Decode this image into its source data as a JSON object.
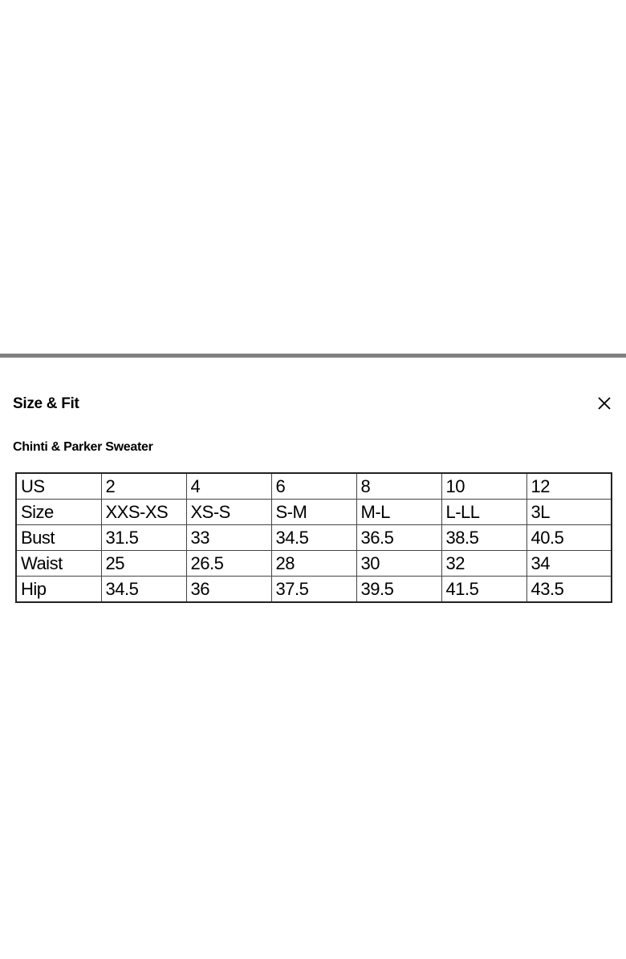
{
  "panel": {
    "title": "Size & Fit",
    "close_icon": "close-x-icon",
    "product_name": "Chinti & Parker Sweater"
  },
  "size_table": {
    "rows": [
      [
        "US",
        "2",
        "4",
        "6",
        "8",
        "10",
        "12"
      ],
      [
        "Size",
        "XXS-XS",
        "XS-S",
        "S-M",
        "M-L",
        "L-LL",
        "3L"
      ],
      [
        "Bust",
        "31.5",
        "33",
        "34.5",
        "36.5",
        "38.5",
        "40.5"
      ],
      [
        "Waist",
        "25",
        "26.5",
        "28",
        "30",
        "32",
        "34"
      ],
      [
        "Hip",
        "34.5",
        "36",
        "37.5",
        "39.5",
        "41.5",
        "43.5"
      ]
    ]
  }
}
